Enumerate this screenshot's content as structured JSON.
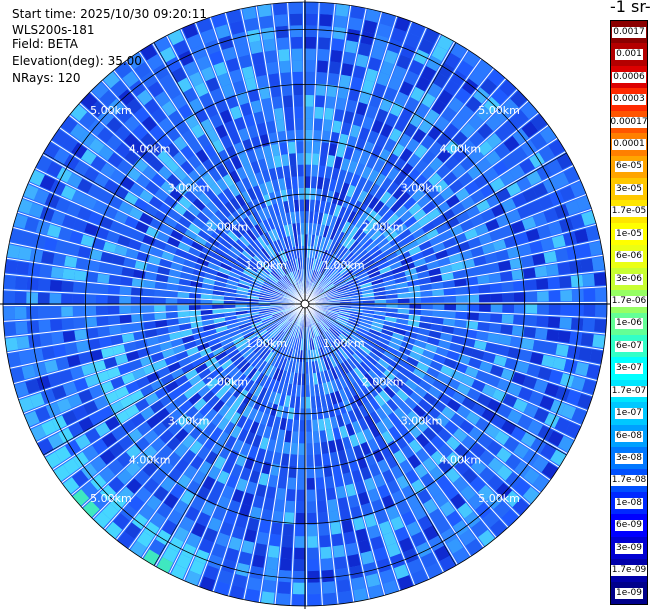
{
  "header": {
    "start_time": "Start time: 2025/10/30 09:20:11",
    "instrument": "WLS200s-181",
    "field": "Field: BETA",
    "elevation": "Elevation(deg): 35.00",
    "nrays": "NRays: 120"
  },
  "colorbar": {
    "title": "-1 sr-",
    "labels": [
      "0.0017",
      "0.001",
      "0.0006",
      "0.0003",
      "0.00017",
      "0.0001",
      "6e-05",
      "3e-05",
      "1.7e-05",
      "1e-05",
      "6e-06",
      "3e-06",
      "1.7e-06",
      "1e-06",
      "6e-07",
      "3e-07",
      "1.7e-07",
      "1e-07",
      "6e-08",
      "3e-08",
      "1.7e-08",
      "1e-08",
      "6e-09",
      "3e-09",
      "1.7e-09",
      "1e-09"
    ],
    "colors": [
      "#8b0000",
      "#b40000",
      "#dc0000",
      "#ff2a00",
      "#ff5500",
      "#ff7f00",
      "#ffa500",
      "#ffc800",
      "#ffe600",
      "#ffff00",
      "#ebff14",
      "#c8ff32",
      "#96ff64",
      "#64ff96",
      "#32ffc8",
      "#00ffff",
      "#00e6ff",
      "#00c8ff",
      "#00a0ff",
      "#0078ff",
      "#0050ff",
      "#0028ff",
      "#0000ff",
      "#0000d2",
      "#0000aa",
      "#00008b"
    ]
  },
  "chart_data": {
    "type": "polar-ppi",
    "field": "BETA",
    "elevation_deg": 35.0,
    "n_rays": 120,
    "max_range_km": 5.5,
    "range_rings_km": [
      1,
      2,
      3,
      4,
      5
    ],
    "ring_labels": [
      "1.00km",
      "2.00km",
      "3.00km",
      "4.00km",
      "5.00km"
    ],
    "spokes_deg": [
      0,
      30,
      60,
      90,
      120,
      150,
      180,
      210,
      240,
      270,
      300,
      330
    ],
    "dominant_value_range": [
      3e-08,
      1e-07
    ]
  }
}
